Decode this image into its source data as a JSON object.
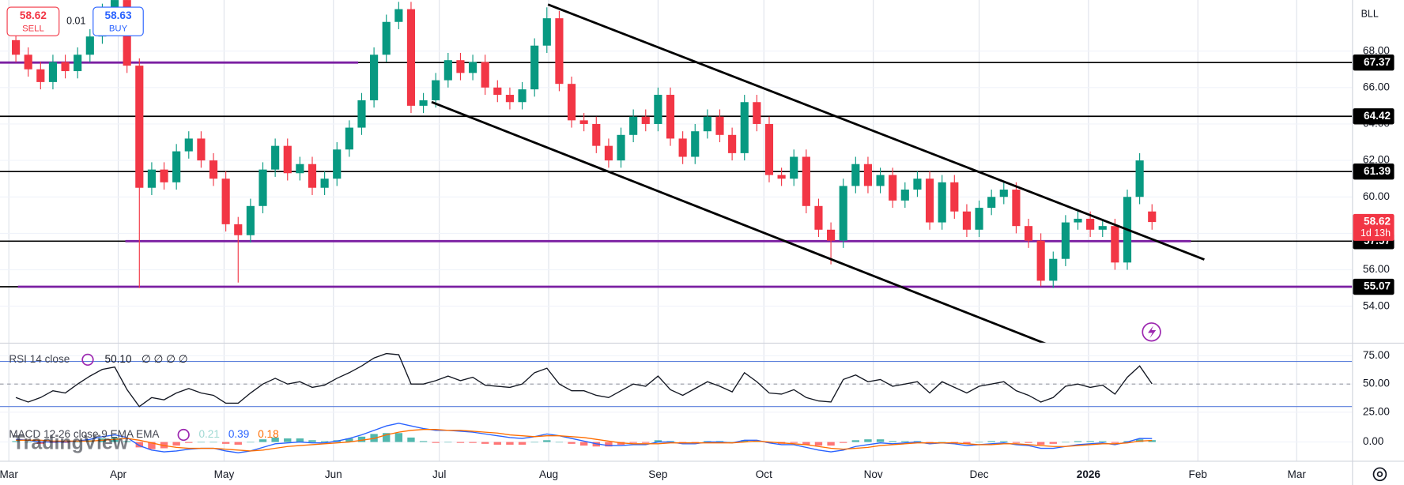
{
  "chart_data": [
    {
      "type": "candlestick",
      "symbol": "BLL",
      "quote": {
        "sell": "58.62",
        "sell_label": "SELL",
        "spread": "0.01",
        "buy": "58.63",
        "buy_label": "BUY"
      },
      "countdown": "1d 13h",
      "watermark": "TradingView",
      "up_color": "#089981",
      "down_color": "#f23645",
      "xlim": [
        -2.5,
        380.7
      ],
      "xticks": [
        {
          "value": 0,
          "label": "Mar"
        },
        {
          "value": 31,
          "label": "Apr"
        },
        {
          "value": 61,
          "label": "May"
        },
        {
          "value": 92,
          "label": "Jun"
        },
        {
          "value": 122,
          "label": "Jul"
        },
        {
          "value": 153,
          "label": "Aug"
        },
        {
          "value": 184,
          "label": "Sep"
        },
        {
          "value": 214,
          "label": "Oct"
        },
        {
          "value": 245,
          "label": "Nov"
        },
        {
          "value": 275,
          "label": "Dec"
        },
        {
          "value": 306,
          "label": "2026"
        },
        {
          "value": 337,
          "label": "Feb"
        },
        {
          "value": 365,
          "label": "Mar"
        }
      ],
      "ylim": [
        52,
        70.8
      ],
      "yticks": [
        {
          "value": 54,
          "label": "54.00"
        },
        {
          "value": 56,
          "label": "56.00"
        },
        {
          "value": 58,
          "label": "58.00"
        },
        {
          "value": 60,
          "label": "60.00"
        },
        {
          "value": 62,
          "label": "62.00"
        },
        {
          "value": 64,
          "label": "64.00"
        },
        {
          "value": 66,
          "label": "66.00"
        },
        {
          "value": 68,
          "label": "68.00"
        }
      ],
      "levels": [
        67.37,
        64.42,
        61.39,
        57.57,
        55.07
      ],
      "level_color": "#000000",
      "highlight_color": "#7b1fa2",
      "x": [
        2,
        5.5,
        9,
        12.5,
        16,
        19.5,
        23,
        26.5,
        30,
        33.5,
        37,
        40.5,
        44,
        47.5,
        51,
        54.5,
        58,
        61.5,
        65,
        68.5,
        72,
        75.5,
        79,
        82.5,
        86,
        89.5,
        93,
        96.5,
        100,
        103.5,
        107,
        110.5,
        114,
        117.5,
        121,
        124.5,
        128,
        131.5,
        135,
        138.5,
        142,
        145.5,
        149,
        152.5,
        156,
        159.5,
        163,
        166.5,
        170,
        173.5,
        177,
        180.5,
        184,
        187.5,
        191,
        194.5,
        198,
        201.5,
        205,
        208.5,
        212,
        215.5,
        219,
        222.5,
        226,
        229.5,
        233,
        236.5,
        240,
        243.5,
        247,
        250.5,
        254,
        257.5,
        261,
        264.5,
        268,
        271.5,
        275,
        278.5,
        282,
        285.5,
        289,
        292.5,
        296,
        299.5,
        303,
        306.5,
        310,
        313.5,
        317,
        320.5,
        324
      ],
      "open": [
        68.6,
        67.8,
        67.0,
        66.3,
        67.4,
        66.9,
        67.8,
        68.8,
        70.2,
        70.8,
        67.2,
        60.5,
        61.5,
        60.8,
        62.5,
        63.2,
        62.0,
        61.0,
        58.5,
        57.9,
        59.5,
        61.5,
        62.8,
        61.3,
        61.8,
        60.5,
        61.0,
        62.6,
        63.8,
        65.3,
        67.8,
        69.6,
        70.3,
        65.0,
        65.3,
        66.4,
        67.5,
        66.8,
        67.4,
        66.0,
        65.6,
        65.2,
        65.9,
        68.3,
        69.8,
        66.2,
        64.2,
        64.0,
        62.8,
        62.0,
        63.4,
        64.4,
        64.0,
        65.6,
        63.2,
        62.2,
        63.6,
        64.4,
        63.4,
        62.4,
        65.2,
        64.0,
        61.2,
        61.0,
        62.2,
        59.5,
        58.2,
        57.6,
        60.6,
        61.8,
        60.6,
        61.2,
        59.8,
        60.4,
        61.0,
        58.6,
        60.8,
        59.2,
        58.2,
        59.4,
        60.0,
        60.4,
        58.4,
        57.6,
        55.4,
        56.6,
        58.6,
        58.8,
        58.2,
        58.4,
        56.4,
        60.0,
        59.2
      ],
      "high": [
        69.0,
        68.2,
        67.4,
        67.8,
        67.8,
        68.2,
        69.2,
        70.6,
        71.2,
        71.2,
        67.6,
        61.9,
        61.9,
        62.9,
        63.6,
        63.6,
        62.4,
        61.4,
        58.9,
        59.9,
        61.9,
        63.2,
        63.2,
        62.2,
        62.2,
        61.4,
        63.0,
        64.2,
        65.7,
        68.2,
        70.0,
        70.7,
        70.7,
        65.7,
        66.8,
        67.9,
        67.9,
        67.8,
        67.8,
        66.4,
        66.0,
        66.3,
        68.7,
        70.4,
        70.2,
        66.6,
        64.6,
        64.4,
        63.2,
        63.8,
        64.8,
        64.8,
        66.0,
        66.0,
        63.6,
        64.0,
        64.8,
        64.8,
        63.8,
        65.6,
        65.6,
        64.4,
        61.6,
        62.6,
        62.6,
        59.9,
        58.6,
        61.0,
        62.2,
        62.2,
        61.6,
        61.6,
        60.8,
        61.4,
        61.4,
        61.2,
        61.2,
        59.6,
        59.8,
        60.4,
        60.8,
        60.8,
        58.8,
        58.0,
        57.0,
        59.0,
        59.2,
        59.2,
        58.8,
        58.8,
        60.4,
        62.4,
        59.6
      ],
      "low": [
        67.4,
        66.6,
        65.9,
        65.9,
        66.5,
        66.5,
        67.4,
        68.4,
        69.8,
        66.8,
        55.0,
        60.1,
        60.4,
        60.4,
        62.1,
        61.6,
        60.6,
        58.1,
        55.3,
        57.5,
        59.1,
        61.1,
        60.9,
        60.9,
        60.1,
        60.1,
        60.6,
        62.2,
        63.4,
        64.9,
        67.4,
        69.2,
        64.6,
        64.6,
        64.9,
        66.0,
        66.4,
        66.4,
        65.6,
        65.2,
        64.8,
        64.8,
        65.5,
        67.9,
        65.8,
        63.8,
        63.6,
        62.4,
        61.6,
        61.6,
        63.0,
        63.6,
        63.6,
        62.8,
        61.8,
        61.8,
        63.2,
        63.0,
        62.0,
        62.0,
        63.6,
        60.8,
        60.6,
        60.6,
        59.1,
        57.8,
        56.3,
        57.2,
        60.2,
        60.2,
        60.2,
        59.4,
        59.4,
        60.0,
        58.2,
        58.2,
        58.8,
        57.8,
        57.8,
        59.0,
        59.6,
        58.0,
        57.2,
        55.1,
        55.0,
        56.2,
        58.2,
        57.8,
        57.8,
        56.0,
        56.0,
        59.6,
        58.2
      ],
      "close": [
        67.8,
        67.0,
        66.3,
        67.4,
        66.9,
        67.8,
        68.8,
        70.2,
        70.8,
        67.2,
        60.5,
        61.5,
        60.8,
        62.5,
        63.2,
        62.0,
        61.0,
        58.5,
        57.9,
        59.5,
        61.5,
        62.8,
        61.3,
        61.8,
        60.5,
        61.0,
        62.6,
        63.8,
        65.3,
        67.8,
        69.6,
        70.3,
        65.0,
        65.3,
        66.4,
        67.5,
        66.8,
        67.4,
        66.0,
        65.6,
        65.2,
        65.9,
        68.3,
        69.8,
        66.2,
        64.2,
        64.0,
        62.8,
        62.0,
        63.4,
        64.4,
        64.0,
        65.6,
        63.2,
        62.2,
        63.6,
        64.4,
        63.4,
        62.4,
        65.2,
        64.0,
        61.2,
        61.0,
        62.2,
        59.5,
        58.2,
        57.6,
        60.6,
        61.8,
        60.6,
        61.2,
        59.8,
        60.4,
        61.0,
        58.6,
        60.8,
        59.2,
        58.2,
        59.4,
        60.0,
        60.4,
        58.4,
        57.6,
        55.4,
        56.6,
        58.6,
        58.8,
        58.2,
        58.4,
        56.4,
        60.0,
        62.0,
        58.62
      ]
    },
    {
      "type": "line",
      "name": "RSI 14 close",
      "legend_value": "50.10",
      "legend_extra": "∅ ∅ ∅ ∅",
      "color": "#131722",
      "band_color": "#5b7fdb",
      "bands": [
        70,
        30
      ],
      "midline": 50,
      "ylim": [
        20,
        85
      ],
      "yticks": [
        {
          "value": 25,
          "label": "25.00"
        },
        {
          "value": 50,
          "label": "50.00"
        },
        {
          "value": 75,
          "label": "75.00"
        }
      ],
      "values": [
        38,
        34,
        38,
        44,
        42,
        50,
        57,
        63,
        65,
        45,
        30,
        38,
        36,
        42,
        46,
        42,
        40,
        33,
        33,
        42,
        50,
        55,
        50,
        52,
        47,
        49,
        55,
        60,
        66,
        73,
        77,
        76,
        50,
        50,
        53,
        57,
        53,
        56,
        49,
        48,
        47,
        50,
        60,
        64,
        50,
        44,
        44,
        40,
        38,
        44,
        50,
        48,
        57,
        45,
        40,
        46,
        52,
        48,
        43,
        60,
        52,
        42,
        41,
        45,
        38,
        35,
        34,
        54,
        58,
        52,
        54,
        48,
        50,
        52,
        42,
        52,
        47,
        42,
        48,
        50,
        52,
        44,
        40,
        34,
        38,
        48,
        50,
        47,
        49,
        41,
        56,
        66,
        50.1
      ]
    },
    {
      "type": "macd",
      "name": "MACD 12 26 close 9 EMA EMA",
      "ylim": [
        -2.1,
        2.7
      ],
      "yticks": [
        {
          "value": 0,
          "label": "0.00"
        }
      ],
      "series": [
        {
          "name": "histogram",
          "color": "#26a69a",
          "negative_color": "#ff5252",
          "values": [
            0.1,
            0.0,
            -0.2,
            -0.1,
            -0.1,
            0.0,
            0.2,
            0.4,
            0.5,
            0.1,
            -0.6,
            -0.8,
            -0.7,
            -0.4,
            -0.1,
            0.0,
            0.0,
            -0.2,
            -0.3,
            0.0,
            0.3,
            0.5,
            0.4,
            0.4,
            0.2,
            0.1,
            0.2,
            0.4,
            0.6,
            0.9,
            1.0,
            1.0,
            0.5,
            0.1,
            -0.1,
            0.0,
            -0.1,
            -0.1,
            -0.2,
            -0.3,
            -0.3,
            -0.3,
            0.0,
            0.2,
            0.0,
            -0.2,
            -0.4,
            -0.5,
            -0.5,
            -0.3,
            -0.1,
            -0.1,
            0.2,
            0.1,
            -0.1,
            -0.1,
            0.1,
            0.1,
            0.0,
            0.2,
            0.1,
            -0.1,
            -0.2,
            -0.1,
            -0.3,
            -0.4,
            -0.4,
            -0.1,
            0.2,
            0.3,
            0.3,
            0.1,
            0.1,
            0.1,
            -0.1,
            0.0,
            -0.1,
            -0.2,
            0.0,
            0.1,
            0.1,
            -0.1,
            -0.1,
            -0.3,
            -0.2,
            0.0,
            0.1,
            0.1,
            0.1,
            -0.1,
            0.1,
            0.3,
            0.21
          ]
        },
        {
          "name": "macd",
          "color": "#2962ff",
          "values": [
            0.3,
            0.2,
            0.0,
            0.0,
            0.0,
            0.1,
            0.3,
            0.6,
            0.8,
            0.5,
            -0.4,
            -0.9,
            -1.1,
            -1.0,
            -0.8,
            -0.7,
            -0.7,
            -1.0,
            -1.2,
            -1.0,
            -0.6,
            -0.2,
            -0.1,
            0.0,
            -0.1,
            -0.1,
            0.1,
            0.4,
            0.8,
            1.3,
            1.8,
            2.1,
            1.8,
            1.5,
            1.3,
            1.3,
            1.2,
            1.1,
            0.9,
            0.7,
            0.5,
            0.4,
            0.6,
            0.9,
            0.7,
            0.4,
            0.1,
            -0.2,
            -0.4,
            -0.4,
            -0.3,
            -0.3,
            0.0,
            0.0,
            -0.2,
            -0.2,
            0.0,
            0.0,
            -0.1,
            0.2,
            0.2,
            -0.1,
            -0.3,
            -0.3,
            -0.6,
            -0.9,
            -1.1,
            -0.9,
            -0.5,
            -0.3,
            -0.1,
            -0.2,
            -0.1,
            0.0,
            -0.2,
            -0.1,
            -0.2,
            -0.4,
            -0.3,
            -0.2,
            -0.1,
            -0.3,
            -0.4,
            -0.7,
            -0.7,
            -0.5,
            -0.3,
            -0.2,
            -0.1,
            -0.3,
            0.0,
            0.4,
            0.39
          ]
        },
        {
          "name": "signal",
          "color": "#ff6d00",
          "values": [
            0.2,
            0.2,
            0.2,
            0.1,
            0.1,
            0.1,
            0.1,
            0.2,
            0.3,
            0.4,
            0.2,
            -0.1,
            -0.4,
            -0.6,
            -0.7,
            -0.7,
            -0.7,
            -0.8,
            -0.9,
            -1.0,
            -0.9,
            -0.7,
            -0.5,
            -0.4,
            -0.3,
            -0.2,
            -0.1,
            0.0,
            0.2,
            0.4,
            0.8,
            1.1,
            1.3,
            1.4,
            1.4,
            1.3,
            1.3,
            1.2,
            1.1,
            1.0,
            0.8,
            0.7,
            0.6,
            0.7,
            0.7,
            0.6,
            0.5,
            0.3,
            0.1,
            -0.1,
            -0.2,
            -0.2,
            -0.2,
            -0.1,
            -0.1,
            -0.1,
            -0.1,
            -0.1,
            -0.1,
            0.0,
            0.1,
            0.0,
            -0.1,
            -0.2,
            -0.3,
            -0.5,
            -0.7,
            -0.8,
            -0.7,
            -0.6,
            -0.4,
            -0.3,
            -0.2,
            -0.1,
            -0.1,
            -0.1,
            -0.1,
            -0.2,
            -0.3,
            -0.3,
            -0.2,
            -0.2,
            -0.3,
            -0.4,
            -0.5,
            -0.5,
            -0.4,
            -0.3,
            -0.2,
            -0.2,
            -0.1,
            0.1,
            0.18
          ]
        }
      ]
    }
  ]
}
